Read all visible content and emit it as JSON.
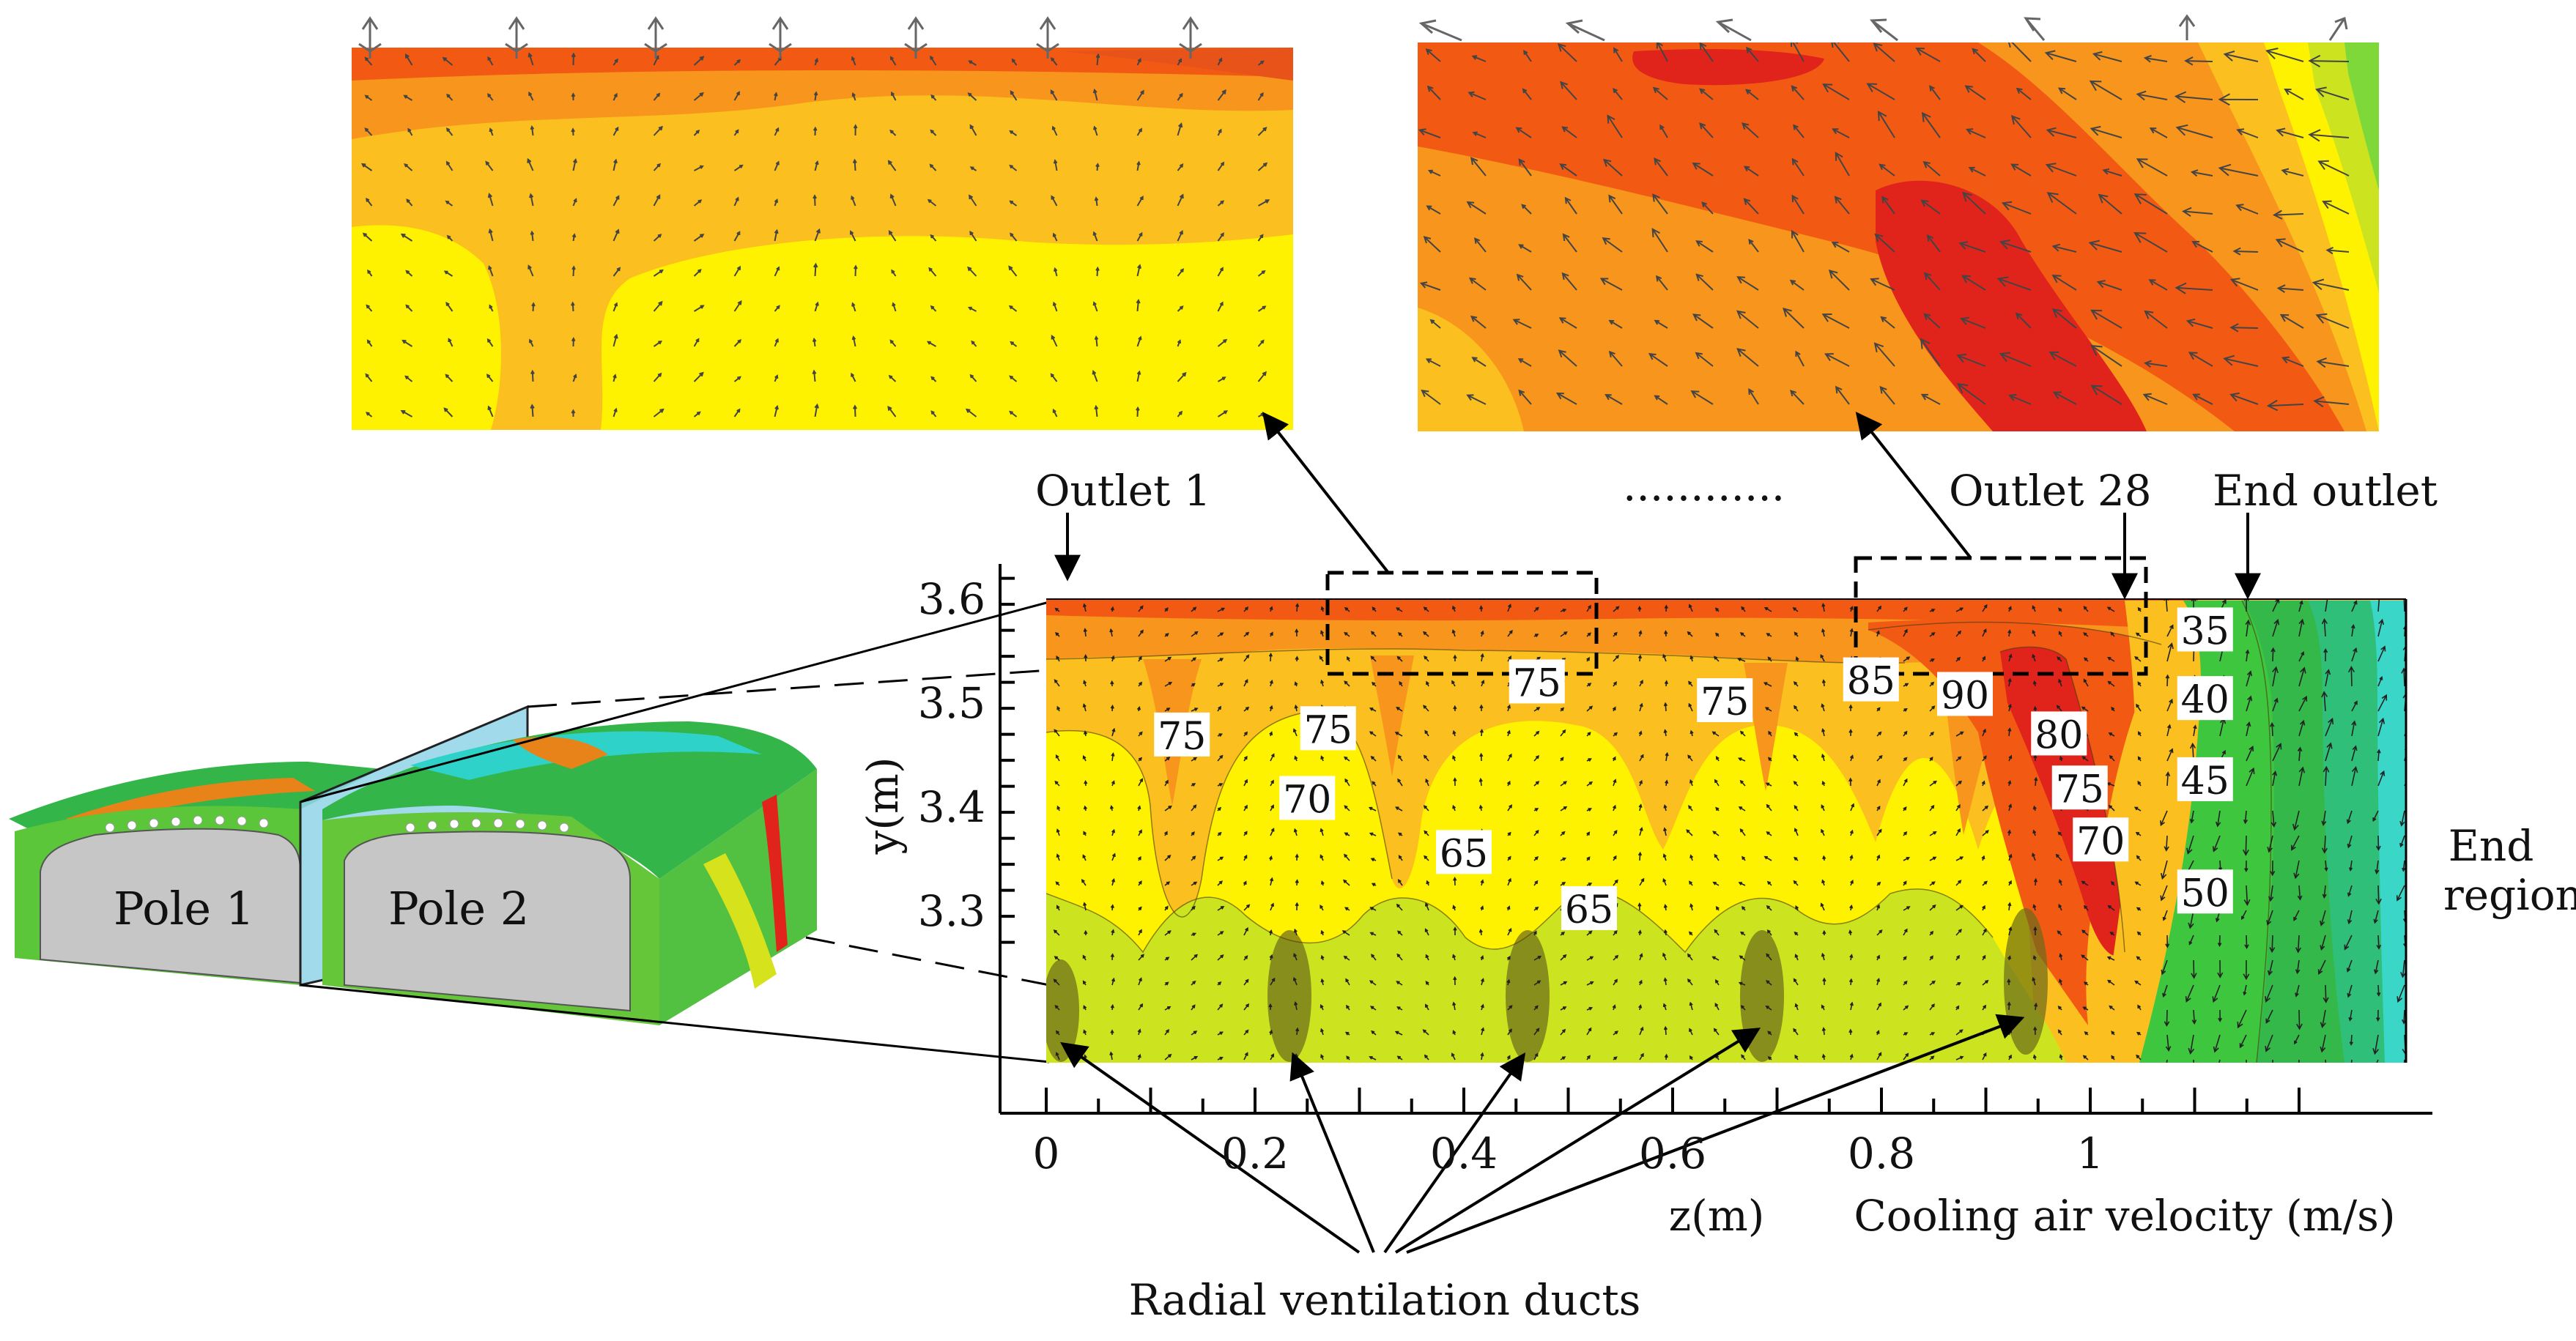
{
  "labels": {
    "outlet_first": "Outlet 1",
    "outlet_last": "Outlet 28",
    "end_outlet": "End outlet",
    "dots": "............",
    "end_region_line1": "End",
    "end_region_line2": "region",
    "ducts": "Radial ventilation ducts",
    "velocity_caption": "Cooling air velocity (m/s)",
    "pole1": "Pole 1",
    "pole2": "Pole 2"
  },
  "axes": {
    "x_label": "z(m)",
    "y_label": "y(m)",
    "x_ticks": [
      "0",
      "0.2",
      "0.4",
      "0.6",
      "0.8",
      "1"
    ],
    "y_ticks": [
      "3.6",
      "3.5",
      "3.4",
      "3.3"
    ]
  },
  "contour_labels": [
    {
      "text": "75",
      "z": 0.13,
      "y": 3.467
    },
    {
      "text": "75",
      "z": 0.27,
      "y": 3.473
    },
    {
      "text": "75",
      "z": 0.47,
      "y": 3.518
    },
    {
      "text": "75",
      "z": 0.65,
      "y": 3.5
    },
    {
      "text": "85",
      "z": 0.79,
      "y": 3.52
    },
    {
      "text": "90",
      "z": 0.88,
      "y": 3.506
    },
    {
      "text": "80",
      "z": 0.97,
      "y": 3.468
    },
    {
      "text": "75",
      "z": 0.99,
      "y": 3.416
    },
    {
      "text": "70",
      "z": 1.01,
      "y": 3.366
    },
    {
      "text": "70",
      "z": 0.25,
      "y": 3.406
    },
    {
      "text": "65",
      "z": 0.4,
      "y": 3.354
    },
    {
      "text": "65",
      "z": 0.52,
      "y": 3.3
    },
    {
      "text": "35",
      "z": 1.11,
      "y": 3.568
    },
    {
      "text": "40",
      "z": 1.11,
      "y": 3.502
    },
    {
      "text": "45",
      "z": 1.11,
      "y": 3.424
    },
    {
      "text": "50",
      "z": 1.11,
      "y": 3.316
    }
  ],
  "colors": {
    "red": "#e0241b",
    "orange_red": "#f25a14",
    "orange": "#f7951c",
    "light_orange": "#fbbf1f",
    "yellow": "#fff200",
    "yellow_green": "#cce41f",
    "green": "#3fc63f",
    "cyan": "#3ad6c8",
    "pole_grey": "#c6c6c6"
  }
}
